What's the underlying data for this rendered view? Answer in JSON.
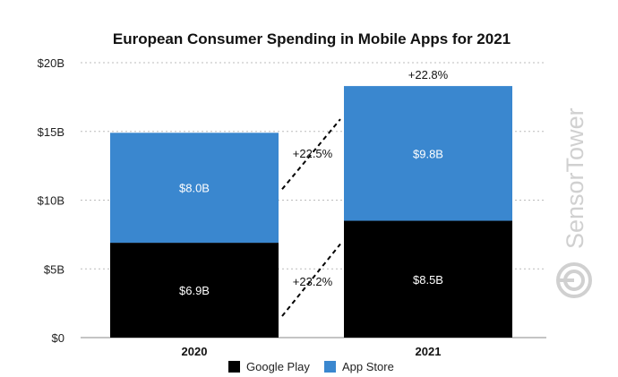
{
  "chart_data": {
    "type": "bar",
    "stacked": true,
    "title": "European Consumer Spending in Mobile Apps for 2021",
    "xlabel": "",
    "ylabel": "",
    "categories": [
      "2020",
      "2021"
    ],
    "series": [
      {
        "name": "Google Play",
        "values": [
          6.9,
          8.5
        ],
        "labels": [
          "$6.9B",
          "$8.5B"
        ],
        "color": "#000000"
      },
      {
        "name": "App Store",
        "values": [
          8.0,
          9.8
        ],
        "labels": [
          "$8.0B",
          "$9.8B"
        ],
        "color": "#3a87cf"
      }
    ],
    "ylim": [
      0,
      20
    ],
    "yticks": [
      0,
      5,
      10,
      15,
      20
    ],
    "ytick_labels": [
      "$0",
      "$5B",
      "$10B",
      "$15B",
      "$20B"
    ],
    "grid": true,
    "legend_position": "bottom",
    "annotations": {
      "total_growth": "+22.8%",
      "app_store_growth": "+22.5%",
      "google_play_growth": "+23.2%"
    }
  },
  "watermark": {
    "text_light": "Sensor",
    "text_bold": "Tower",
    "icon": "sensortower-logo-icon"
  }
}
